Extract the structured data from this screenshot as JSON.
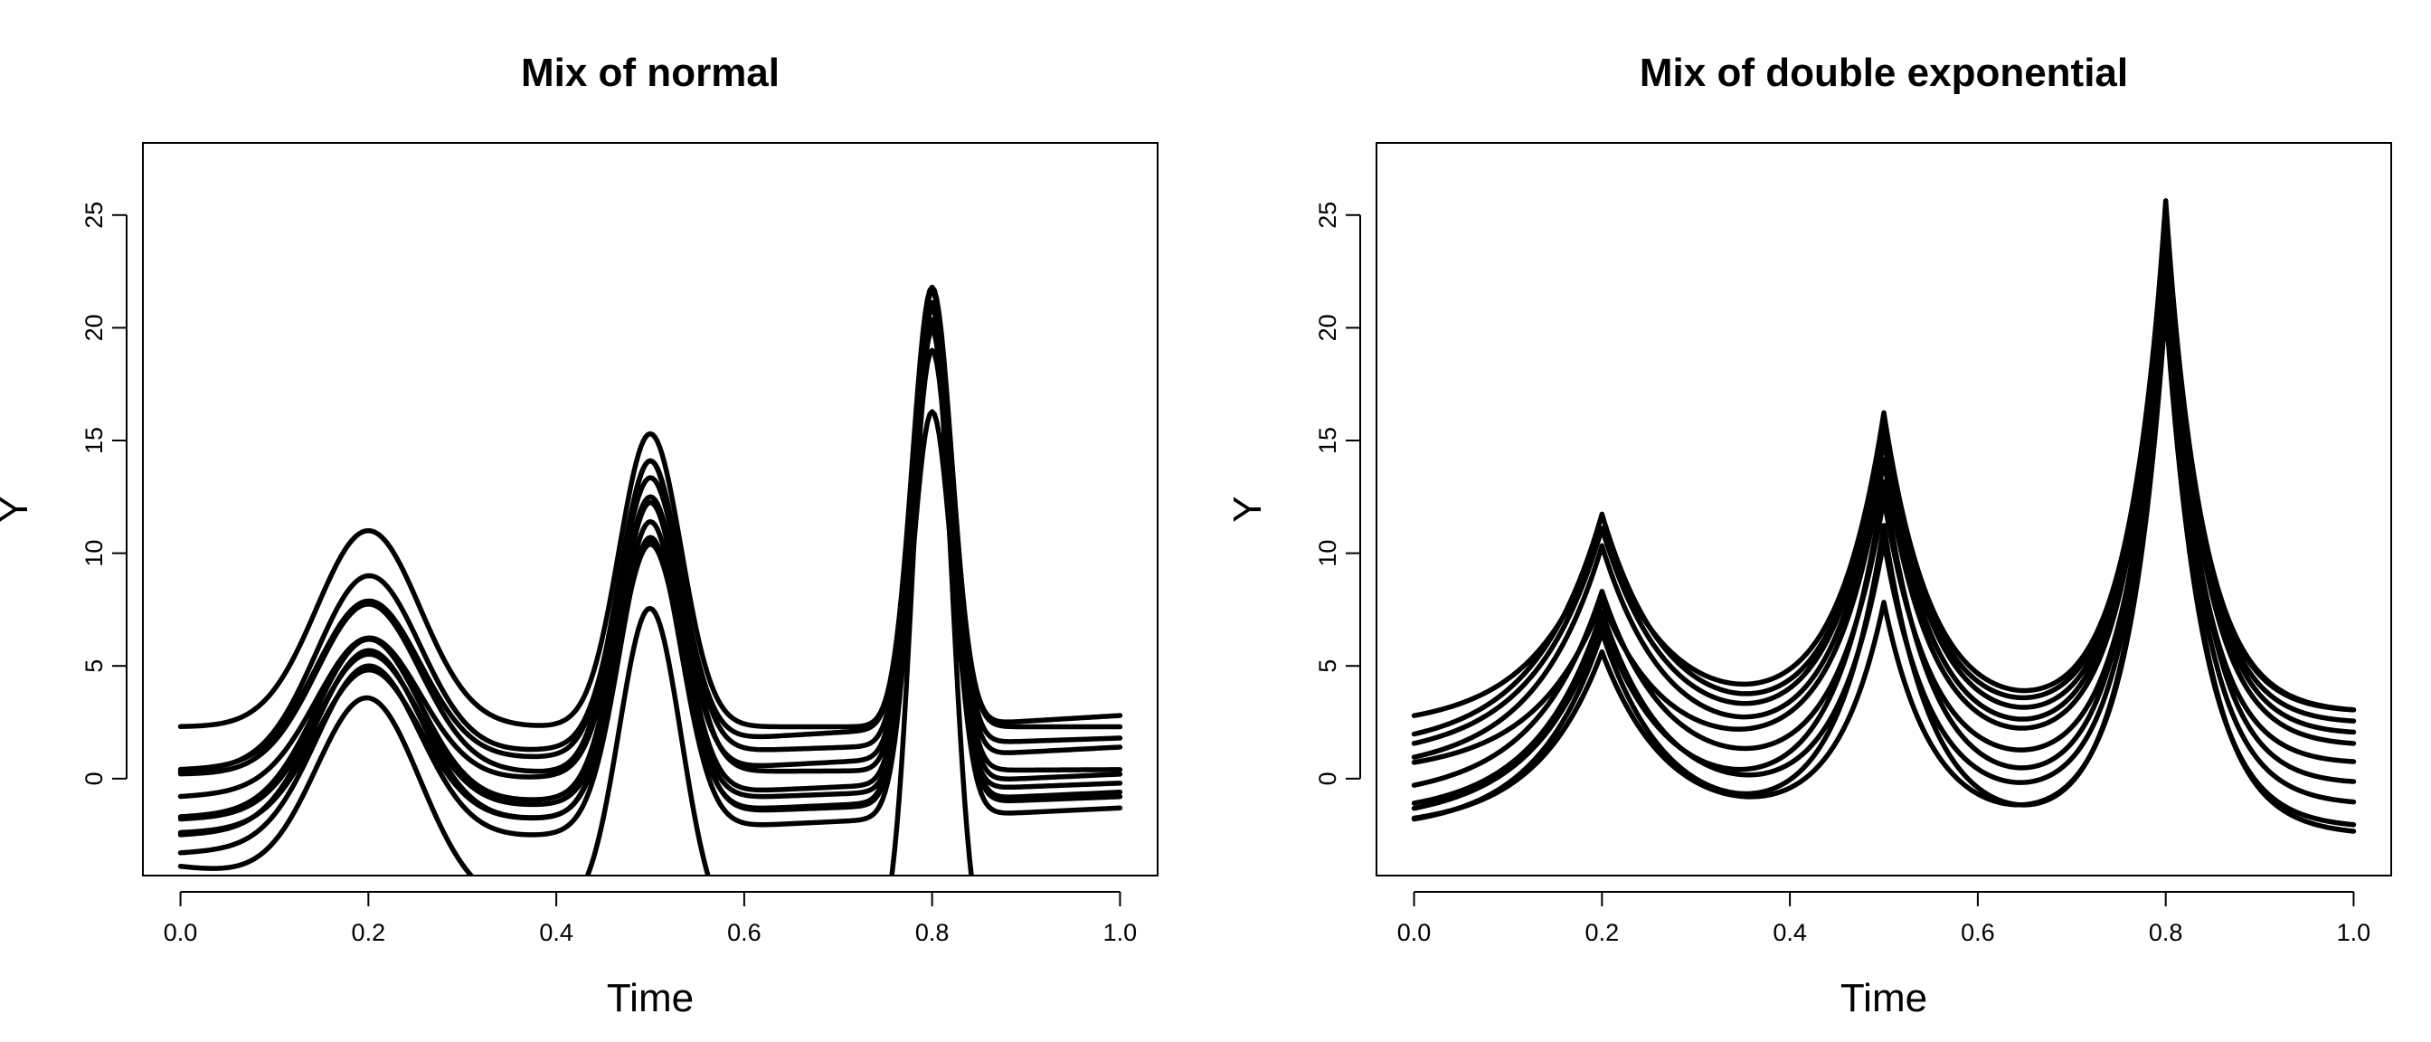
{
  "chart_data": [
    {
      "type": "line",
      "title": "Mix of normal",
      "xlabel": "Time",
      "ylabel": "Y",
      "xlim": [
        -0.04,
        1.04
      ],
      "ylim": [
        -4.3,
        28.2
      ],
      "x_ticks": [
        "0.0",
        "0.2",
        "0.4",
        "0.6",
        "0.8",
        "1.0"
      ],
      "y_ticks": [
        "0",
        "5",
        "10",
        "15",
        "20",
        "25"
      ],
      "grid": false,
      "peaks": [
        {
          "center": 0.2,
          "width": 0.055
        },
        {
          "center": 0.5,
          "width": 0.033
        },
        {
          "center": 0.8,
          "width": 0.021
        }
      ],
      "x": [
        0.0,
        0.05,
        0.1,
        0.15,
        0.2,
        0.25,
        0.3,
        0.35,
        0.4,
        0.45,
        0.5,
        0.55,
        0.6,
        0.65,
        0.7,
        0.75,
        0.8,
        0.85,
        0.9,
        0.95,
        1.0
      ],
      "series": [
        {
          "baseline": [
            2.3,
            2.3
          ],
          "amplitudes": [
            8.7,
            13.0,
            19.5
          ]
        },
        {
          "baseline": [
            0.3,
            2.8
          ],
          "amplitudes": [
            8.2,
            11.8,
            19.3
          ]
        },
        {
          "baseline": [
            0.4,
            1.8
          ],
          "amplitudes": [
            7.2,
            13.0,
            19.6
          ]
        },
        {
          "baseline": [
            0.2,
            0.4
          ],
          "amplitudes": [
            7.5,
            13.8,
            20.0
          ]
        },
        {
          "baseline": [
            -0.8,
            1.4
          ],
          "amplitudes": [
            6.6,
            12.2,
            19.1
          ]
        },
        {
          "baseline": [
            -1.7,
            0.2
          ],
          "amplitudes": [
            7.5,
            13.0,
            20.1
          ]
        },
        {
          "baseline": [
            -1.8,
            -0.2
          ],
          "amplitudes": [
            7.0,
            11.4,
            16.8
          ]
        },
        {
          "baseline": [
            -2.5,
            -0.6
          ],
          "amplitudes": [
            7.8,
            12.1,
            21.8
          ]
        },
        {
          "baseline": [
            -2.4,
            -0.8
          ],
          "amplitudes": [
            6.9,
            13.0,
            21.0
          ]
        },
        {
          "baseline": [
            -3.3,
            -1.3
          ],
          "amplitudes": [
            7.9,
            13.0,
            20.7
          ]
        },
        {
          "baseline": [
            -3.9,
            -9.0
          ],
          "amplitudes": [
            8.5,
            14.0,
            28.0
          ]
        }
      ]
    },
    {
      "type": "line",
      "title": "Mix of double exponential",
      "xlabel": "Time",
      "ylabel": "Y",
      "xlim": [
        -0.04,
        1.04
      ],
      "ylim": [
        -4.3,
        28.2
      ],
      "x_ticks": [
        "0.0",
        "0.2",
        "0.4",
        "0.6",
        "0.8",
        "1.0"
      ],
      "y_ticks": [
        "0",
        "5",
        "10",
        "15",
        "20",
        "25"
      ],
      "grid": false,
      "peaks": [
        {
          "center": 0.2,
          "width": 0.07
        },
        {
          "center": 0.5,
          "width": 0.05
        },
        {
          "center": 0.8,
          "width": 0.04
        }
      ],
      "x": [
        0.0,
        0.05,
        0.1,
        0.15,
        0.2,
        0.25,
        0.3,
        0.35,
        0.4,
        0.45,
        0.5,
        0.55,
        0.6,
        0.65,
        0.7,
        0.75,
        0.8,
        0.85,
        0.9,
        0.95,
        1.0
      ],
      "series": [
        {
          "baseline": [
            2.3,
            2.9
          ],
          "amplitudes": [
            8.6,
            13.5,
            22.5
          ]
        },
        {
          "baseline": [
            1.4,
            2.9
          ],
          "amplitudes": [
            10.0,
            13.5,
            22.4
          ]
        },
        {
          "baseline": [
            1.0,
            2.4
          ],
          "amplitudes": [
            9.8,
            14.0,
            23.0
          ]
        },
        {
          "baseline": [
            0.4,
            1.9
          ],
          "amplitudes": [
            9.6,
            13.8,
            24.0
          ]
        },
        {
          "baseline": [
            0.3,
            1.4
          ],
          "amplitudes": [
            7.3,
            13.2,
            23.7
          ]
        },
        {
          "baseline": [
            -0.8,
            0.6
          ],
          "amplitudes": [
            8.8,
            12.4,
            22.8
          ]
        },
        {
          "baseline": [
            -1.8,
            -0.3
          ],
          "amplitudes": [
            8.4,
            14.1,
            25.2
          ]
        },
        {
          "baseline": [
            -1.6,
            -1.2
          ],
          "amplitudes": [
            8.9,
            11.8,
            24.3
          ]
        },
        {
          "baseline": [
            -2.2,
            -2.2
          ],
          "amplitudes": [
            7.8,
            9.9,
            23.1
          ]
        },
        {
          "baseline": [
            -2.3,
            -2.5
          ],
          "amplitudes": [
            8.8,
            13.5,
            24.6
          ]
        }
      ]
    }
  ]
}
